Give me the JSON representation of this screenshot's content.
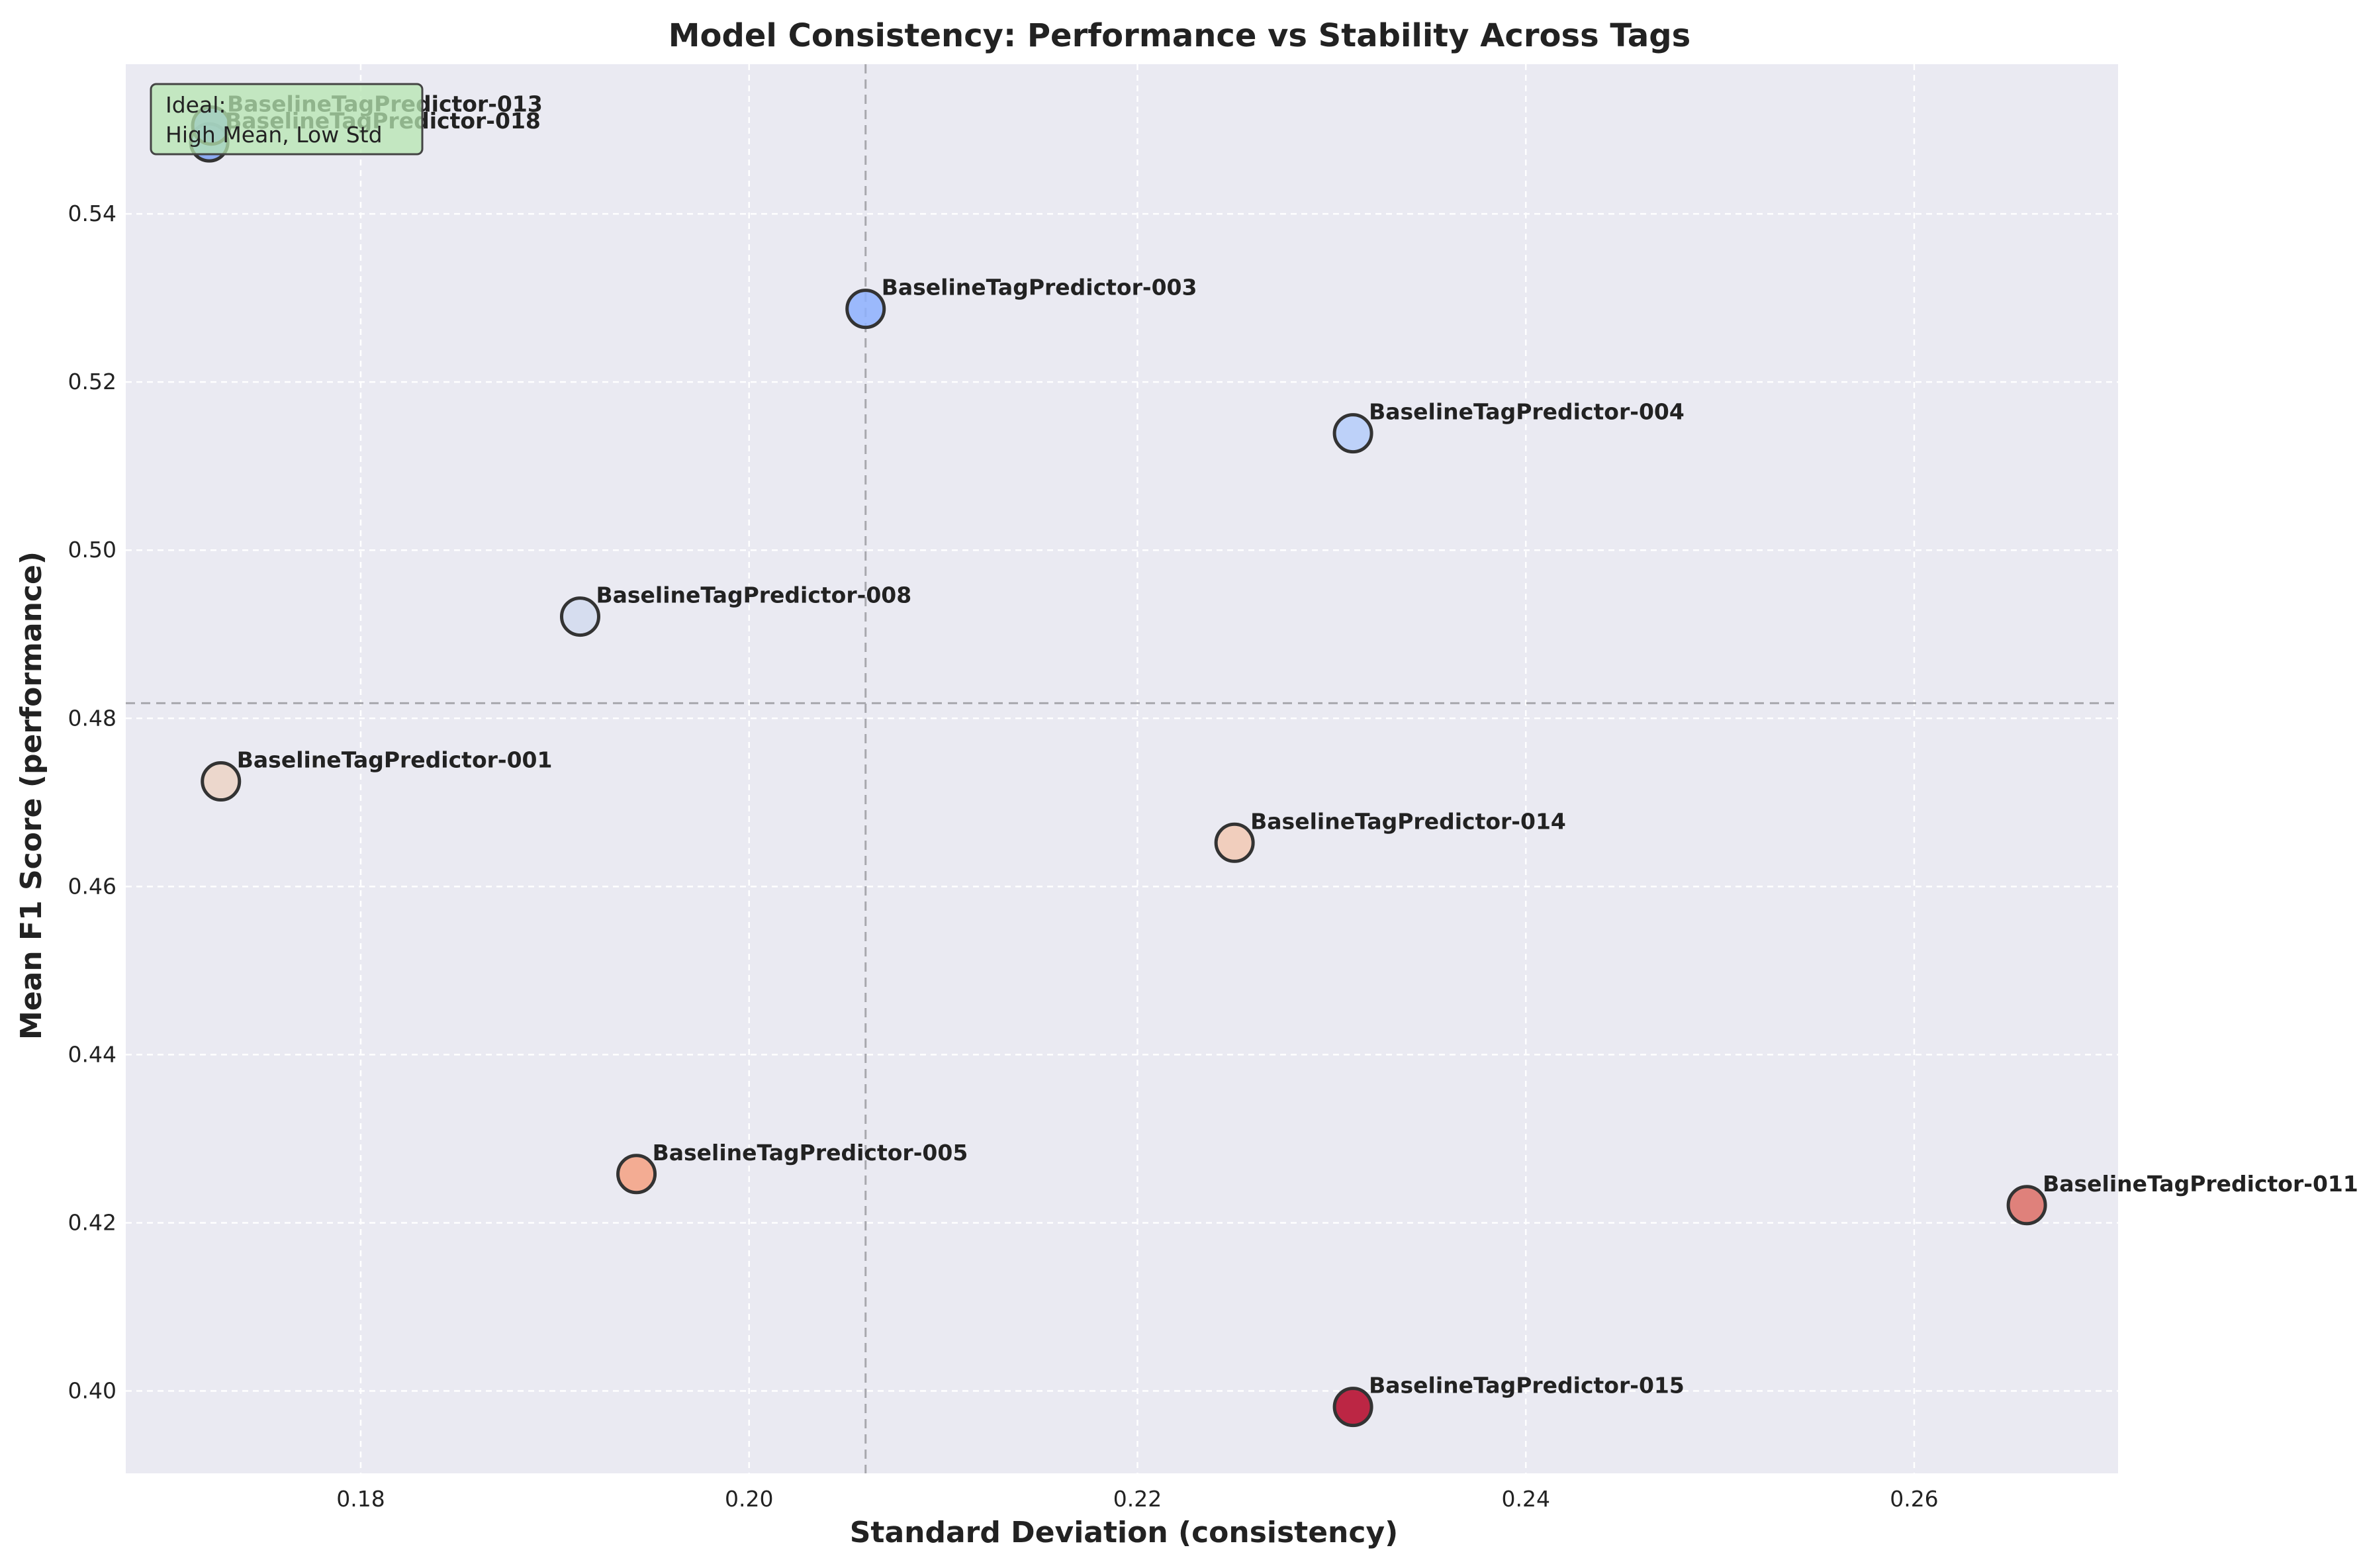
{
  "chart_data": {
    "type": "scatter",
    "title": "Model Consistency: Performance vs Stability Across Tags",
    "xlabel": "Standard Deviation (consistency)",
    "ylabel": "Mean F1 Score (performance)",
    "xlim": [
      0.1679,
      0.2705
    ],
    "ylim": [
      0.3902,
      0.5578
    ],
    "xticks": [
      0.18,
      0.2,
      0.22,
      0.24,
      0.26
    ],
    "xtick_labels": [
      "0.18",
      "0.20",
      "0.22",
      "0.24",
      "0.26"
    ],
    "yticks": [
      0.4,
      0.42,
      0.44,
      0.46,
      0.48,
      0.5,
      0.52,
      0.54
    ],
    "ytick_labels": [
      "0.40",
      "0.42",
      "0.44",
      "0.46",
      "0.48",
      "0.50",
      "0.52",
      "0.54"
    ],
    "grid": true,
    "reference_lines": {
      "x": 0.206,
      "y": 0.4818
    },
    "annotation": {
      "lines": [
        "Ideal:",
        "High Mean, Low Std"
      ],
      "background": "#b6e6b0"
    },
    "points": [
      {
        "label": "BaselineTagPredictor-018",
        "x": 0.1722,
        "y": 0.5485,
        "color": "#7b9ff2"
      },
      {
        "label": "BaselineTagPredictor-013",
        "x": 0.1723,
        "y": 0.5505,
        "color": "#6a8bef"
      },
      {
        "label": "BaselineTagPredictor-003",
        "x": 0.206,
        "y": 0.5287,
        "color": "#8db0fe"
      },
      {
        "label": "BaselineTagPredictor-004",
        "x": 0.2311,
        "y": 0.5139,
        "color": "#b5cdfa"
      },
      {
        "label": "BaselineTagPredictor-008",
        "x": 0.1913,
        "y": 0.4921,
        "color": "#d2dbee"
      },
      {
        "label": "BaselineTagPredictor-001",
        "x": 0.1728,
        "y": 0.4725,
        "color": "#ecd3c5"
      },
      {
        "label": "BaselineTagPredictor-014",
        "x": 0.225,
        "y": 0.4652,
        "color": "#f2c9b4"
      },
      {
        "label": "BaselineTagPredictor-005",
        "x": 0.1942,
        "y": 0.4258,
        "color": "#f5a183"
      },
      {
        "label": "BaselineTagPredictor-011",
        "x": 0.2658,
        "y": 0.4221,
        "color": "#dd6e66"
      },
      {
        "label": "BaselineTagPredictor-015",
        "x": 0.2311,
        "y": 0.3981,
        "color": "#b40426"
      }
    ]
  }
}
